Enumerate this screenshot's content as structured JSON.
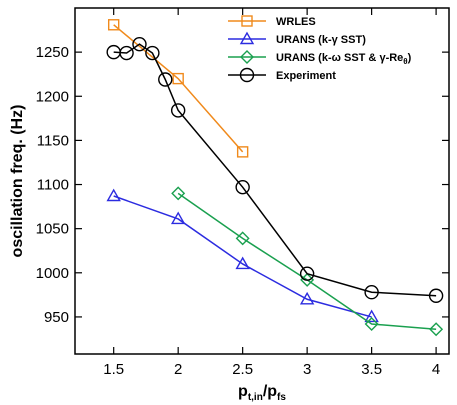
{
  "chart_data": {
    "type": "line",
    "xlabel": "p",
    "xlabel_sub1": "t,in",
    "xlabel_mid": "/p",
    "xlabel_sub2": "fs",
    "ylabel": "oscillation freq. (Hz)",
    "xlim": [
      1.2,
      4.1
    ],
    "ylim": [
      908,
      1300
    ],
    "xticks": [
      1.5,
      2,
      2.5,
      3,
      3.5,
      4
    ],
    "xtick_labels": [
      "1.5",
      "2",
      "2.5",
      "3",
      "3.5",
      "4"
    ],
    "yticks": [
      950,
      1000,
      1050,
      1100,
      1150,
      1200,
      1250
    ],
    "ytick_labels": [
      "950",
      "1000",
      "1050",
      "1100",
      "1150",
      "1200",
      "1250"
    ],
    "grid": false,
    "legend_position": "top-right",
    "series": [
      {
        "name": "WRLES",
        "marker": "square",
        "color": "#f08a1c",
        "x": [
          1.5,
          2.0,
          2.5
        ],
        "y": [
          1281,
          1220,
          1137
        ]
      },
      {
        "name_parts": [
          "URANS (k-",
          "γ",
          " SST)"
        ],
        "marker": "triangle",
        "color": "#2c2ce0",
        "x": [
          1.5,
          2.0,
          2.5,
          3.0,
          3.5
        ],
        "y": [
          1087,
          1061,
          1010,
          970,
          950
        ]
      },
      {
        "name_parts": [
          "URANS (k-",
          "ω",
          " SST & ",
          "γ",
          "-Re",
          "θ",
          ")"
        ],
        "marker": "diamond",
        "color": "#1aa04f",
        "x": [
          2.0,
          2.5,
          3.0,
          3.5,
          4.0
        ],
        "y": [
          1090,
          1039,
          992,
          942,
          936
        ]
      },
      {
        "name": "Experiment",
        "marker": "circle",
        "color": "#000000",
        "x": [
          1.5,
          1.6,
          1.7,
          1.8,
          1.9,
          2.0,
          2.5,
          3.0,
          3.5,
          4.0
        ],
        "y": [
          1250,
          1249,
          1259,
          1249,
          1219,
          1184,
          1097,
          999,
          978,
          974
        ]
      }
    ]
  }
}
